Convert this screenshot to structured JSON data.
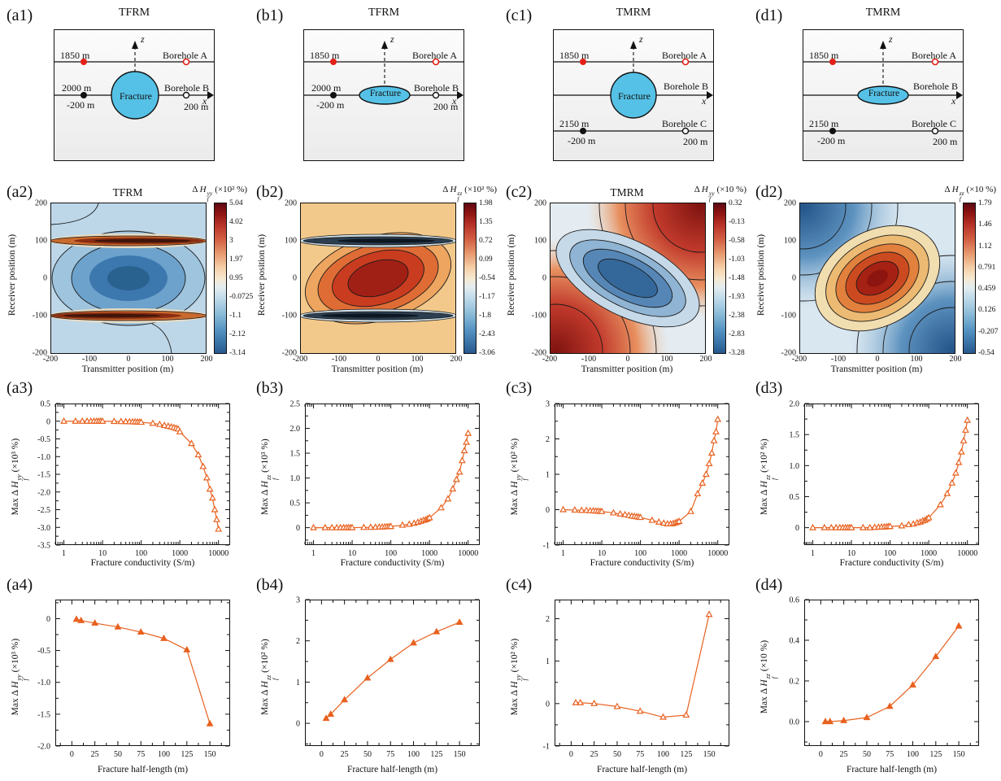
{
  "schematics": [
    {
      "panel_label": "(a1)",
      "title": "TFRM",
      "fracture_shape": "circle",
      "boreholes": "two",
      "depth_top": "1850 m",
      "borehole_top": "Borehole A",
      "depth_mid": "2000 m",
      "borehole_mid": "Borehole B",
      "left_offset": "-200 m",
      "right_offset": "200 m",
      "fracture_label": "Fracture",
      "z_axis": "z",
      "x_axis": "x"
    },
    {
      "panel_label": "(b1)",
      "title": "TFRM",
      "fracture_shape": "ellipse",
      "boreholes": "two",
      "depth_top": "1850 m",
      "borehole_top": "Borehole A",
      "depth_mid": "2000 m",
      "borehole_mid": "Borehole B",
      "left_offset": "-200 m",
      "right_offset": "200 m",
      "fracture_label": "Fracture",
      "z_axis": "z",
      "x_axis": "x"
    },
    {
      "panel_label": "(c1)",
      "title": "TMRM",
      "fracture_shape": "circle",
      "boreholes": "three",
      "depth_top": "1850 m",
      "borehole_top": "Borehole A",
      "borehole_mid": "Borehole B",
      "depth_bot": "2150 m",
      "borehole_bot": "Borehole C",
      "left_offset": "-200 m",
      "right_offset": "200 m",
      "fracture_label": "Fracture",
      "z_axis": "z",
      "x_axis": "x"
    },
    {
      "panel_label": "(d1)",
      "title": "TMRM",
      "fracture_shape": "ellipse",
      "boreholes": "three",
      "depth_top": "1850 m",
      "borehole_top": "Borehole A",
      "borehole_mid": "Borehole B",
      "depth_bot": "2150 m",
      "borehole_bot": "Borehole C",
      "left_offset": "-200 m",
      "right_offset": "200 m",
      "fracture_label": "Fracture",
      "z_axis": "z",
      "x_axis": "x"
    }
  ],
  "chart_data": [
    {
      "id": "a2",
      "type": "heatmap",
      "panel_label": "(a2)",
      "title": "TFRM",
      "xlabel": "Transmitter position (m)",
      "ylabel": "Receiver position (m)",
      "xlim": [
        -200,
        200
      ],
      "ylim": [
        -200,
        200
      ],
      "xtick_labels": [
        "-200",
        "-100",
        "0",
        "100",
        "200"
      ],
      "ytick_labels": [
        "200",
        "100",
        "0",
        "-100",
        "-200"
      ],
      "colorbar": {
        "label": {
          "prefix": "Δ ",
          "sym": "H",
          "sup": "yy",
          "sub": "f",
          "unit": "(×10² %)"
        },
        "tick_labels": [
          "5.04",
          "4.02",
          "3",
          "1.97",
          "0.95",
          "-0.0725",
          "-1.1",
          "-2.12",
          "-3.14"
        ]
      },
      "description": "negative (blue) elliptical anomaly centered at origin with strong positive (dark red) horizontal bands at receiver positions ±100 m"
    },
    {
      "id": "b2",
      "type": "heatmap",
      "panel_label": "(b2)",
      "title": "",
      "xlabel": "Transmitter position (m)",
      "ylabel": "Receiver position (m)",
      "xlim": [
        -200,
        200
      ],
      "ylim": [
        -200,
        200
      ],
      "xtick_labels": [
        "-200",
        "-100",
        "0",
        "100",
        "200"
      ],
      "ytick_labels": [
        "200",
        "100",
        "0",
        "-100",
        "-200"
      ],
      "colorbar": {
        "label": {
          "prefix": "Δ ",
          "sym": "H",
          "sup": "zz",
          "sub": "f",
          "unit": "(×10² %)"
        },
        "tick_labels": [
          "1.98",
          "1.35",
          "0.72",
          "0.09",
          "-0.54",
          "-1.17",
          "-1.8",
          "-2.43",
          "-3.06"
        ]
      },
      "description": "positive (dark red) tilted elliptical anomaly centered at origin on warm background with dark negative horizontal bands at receiver positions ±100 m"
    },
    {
      "id": "c2",
      "type": "heatmap",
      "panel_label": "(c2)",
      "title": "TMRM",
      "xlabel": "Transmitter position (m)",
      "ylabel": "Receiver position (m)",
      "xlim": [
        -200,
        200
      ],
      "ylim": [
        -200,
        200
      ],
      "xtick_labels": [
        "-200",
        "-100",
        "0",
        "100",
        "200"
      ],
      "ytick_labels": [
        "200",
        "100",
        "0",
        "-100",
        "-200"
      ],
      "colorbar": {
        "label": {
          "prefix": "Δ ",
          "sym": "H",
          "sup": "yy",
          "sub": "f",
          "unit": "(×10 %)"
        },
        "tick_labels": [
          "0.32",
          "-0.13",
          "-0.58",
          "-1.03",
          "-1.48",
          "-1.93",
          "-2.38",
          "-2.83",
          "-3.28"
        ]
      },
      "description": "negative (blue) band elongated along the main diagonal with positive (red) lobes in the bottom-left and top-right corners"
    },
    {
      "id": "d2",
      "type": "heatmap",
      "panel_label": "(d2)",
      "title": "",
      "xlabel": "Transmitter position (m)",
      "ylabel": "Receiver position (m)",
      "xlim": [
        -200,
        200
      ],
      "ylim": [
        -200,
        200
      ],
      "xtick_labels": [
        "-200",
        "-100",
        "0",
        "100",
        "200"
      ],
      "ytick_labels": [
        "200",
        "100",
        "0",
        "-100",
        "-200"
      ],
      "colorbar": {
        "label": {
          "prefix": "Δ ",
          "sym": "H",
          "sup": "zz",
          "sub": "f",
          "unit": "(×10 %)"
        },
        "tick_labels": [
          "1.79",
          "1.46",
          "1.12",
          "0.791",
          "0.459",
          "0.126",
          "-0.207",
          "-0.54"
        ]
      },
      "description": "positive (red) tilted elliptical anomaly centered at origin with negative (blue) lobes in the top-left and bottom-right corners"
    },
    {
      "id": "a3",
      "type": "line",
      "panel_label": "(a3)",
      "xscale": "log",
      "xlabel": "Fracture conductivity (S/m)",
      "ylabel": {
        "prefix": "Max Δ ",
        "sym": "H",
        "sup": "yy",
        "sub": "f",
        "unit": "(×10³ %)"
      },
      "xlim": [
        0.6,
        20000
      ],
      "ylim": [
        -3.5,
        0.5
      ],
      "xticks": [
        1,
        10,
        100,
        1000,
        10000
      ],
      "xtick_labels": [
        "1",
        "10",
        "100",
        "1000",
        "10000"
      ],
      "yticks": [
        0.5,
        0,
        -0.5,
        -1,
        -1.5,
        -2,
        -2.5,
        -3,
        -3.5
      ],
      "ytick_labels": [
        "0.5",
        "0",
        "-0.5",
        "-1.0",
        "-1.5",
        "-2.0",
        "-2.5",
        "-3.0",
        "-3.5"
      ],
      "yminor": 0.25,
      "x": [
        1,
        2,
        3,
        4,
        5,
        6,
        7,
        8,
        9,
        10,
        20,
        30,
        40,
        50,
        60,
        70,
        80,
        90,
        100,
        200,
        300,
        400,
        500,
        600,
        700,
        800,
        900,
        1000,
        2000,
        3000,
        4000,
        5000,
        6000,
        7000,
        8000,
        9000,
        10000
      ],
      "y": [
        0,
        0,
        0,
        0,
        0,
        0,
        0,
        0,
        0,
        0,
        -0.005,
        -0.01,
        -0.012,
        -0.015,
        -0.018,
        -0.02,
        -0.022,
        -0.025,
        -0.03,
        -0.06,
        -0.09,
        -0.12,
        -0.14,
        -0.16,
        -0.18,
        -0.2,
        -0.22,
        -0.3,
        -0.63,
        -0.95,
        -1.28,
        -1.6,
        -1.92,
        -2.17,
        -2.5,
        -2.78,
        -3.05
      ],
      "marker": "open",
      "color": "#e8611f"
    },
    {
      "id": "b3",
      "type": "line",
      "panel_label": "(b3)",
      "xscale": "log",
      "xlabel": "Fracture conductivity (S/m)",
      "ylabel": {
        "prefix": "Max Δ ",
        "sym": "H",
        "sup": "zz",
        "sub": "f",
        "unit": "(×10³ %)"
      },
      "xlim": [
        0.6,
        20000
      ],
      "ylim": [
        -0.35,
        2.5
      ],
      "xticks": [
        1,
        10,
        100,
        1000,
        10000
      ],
      "xtick_labels": [
        "1",
        "10",
        "100",
        "1000",
        "10000"
      ],
      "yticks": [
        2.5,
        2,
        1.5,
        1,
        0.5,
        0
      ],
      "ytick_labels": [
        "2.5",
        "2.0",
        "1.5",
        "1.0",
        "0.5",
        "0"
      ],
      "yminor": 0.25,
      "x": [
        1,
        2,
        3,
        4,
        5,
        6,
        7,
        8,
        9,
        10,
        20,
        30,
        40,
        50,
        60,
        70,
        80,
        90,
        100,
        200,
        300,
        400,
        500,
        600,
        700,
        800,
        900,
        1000,
        2000,
        3000,
        4000,
        5000,
        6000,
        7000,
        8000,
        9000,
        10000
      ],
      "y": [
        0,
        0,
        0,
        0,
        0,
        0,
        0,
        0,
        0,
        0,
        0.005,
        0.008,
        0.01,
        0.012,
        0.015,
        0.018,
        0.02,
        0.022,
        0.025,
        0.05,
        0.07,
        0.09,
        0.11,
        0.13,
        0.15,
        0.16,
        0.18,
        0.2,
        0.4,
        0.58,
        0.78,
        0.97,
        1.12,
        1.35,
        1.55,
        1.72,
        1.9
      ],
      "marker": "open",
      "color": "#e8611f"
    },
    {
      "id": "c3",
      "type": "line",
      "panel_label": "(c3)",
      "xscale": "log",
      "xlabel": "Fracture conductivity (S/m)",
      "ylabel": {
        "prefix": "Max Δ ",
        "sym": "H",
        "sup": "yy",
        "sub": "f",
        "unit": "(×10² %)"
      },
      "xlim": [
        0.6,
        20000
      ],
      "ylim": [
        -1,
        3
      ],
      "xticks": [
        1,
        10,
        100,
        1000,
        10000
      ],
      "xtick_labels": [
        "1",
        "10",
        "100",
        "1000",
        "10000"
      ],
      "yticks": [
        3,
        2,
        1,
        0,
        -1
      ],
      "ytick_labels": [
        "3",
        "2",
        "1",
        "0",
        "-1"
      ],
      "yminor": 0.5,
      "x": [
        1,
        2,
        3,
        4,
        5,
        6,
        7,
        8,
        9,
        10,
        20,
        30,
        40,
        50,
        60,
        70,
        80,
        90,
        100,
        200,
        300,
        400,
        500,
        600,
        700,
        800,
        900,
        1000,
        2000,
        3000,
        4000,
        5000,
        6000,
        7000,
        8000,
        9000,
        10000
      ],
      "y": [
        0,
        -0.01,
        -0.02,
        -0.02,
        -0.03,
        -0.03,
        -0.04,
        -0.04,
        -0.05,
        -0.05,
        -0.09,
        -0.12,
        -0.14,
        -0.16,
        -0.18,
        -0.19,
        -0.2,
        -0.21,
        -0.22,
        -0.3,
        -0.35,
        -0.38,
        -0.4,
        -0.4,
        -0.39,
        -0.37,
        -0.35,
        -0.33,
        -0.05,
        0.45,
        0.75,
        1.0,
        1.3,
        1.6,
        1.95,
        2.2,
        2.55
      ],
      "marker": "open",
      "color": "#e8611f"
    },
    {
      "id": "d3",
      "type": "line",
      "panel_label": "(d3)",
      "xscale": "log",
      "xlabel": "Fracture conductivity (S/m)",
      "ylabel": {
        "prefix": "Max Δ ",
        "sym": "H",
        "sup": "zz",
        "sub": "f",
        "unit": "(×10² %)"
      },
      "xlim": [
        0.6,
        20000
      ],
      "ylim": [
        -0.28,
        2
      ],
      "xticks": [
        1,
        10,
        100,
        1000,
        10000
      ],
      "xtick_labels": [
        "1",
        "10",
        "100",
        "1000",
        "10000"
      ],
      "yticks": [
        2,
        1.5,
        1,
        0.5,
        0
      ],
      "ytick_labels": [
        "2.0",
        "1.5",
        "1.0",
        "0.5",
        "0"
      ],
      "yminor": 0.25,
      "x": [
        1,
        2,
        3,
        4,
        5,
        6,
        7,
        8,
        9,
        10,
        20,
        30,
        40,
        50,
        60,
        70,
        80,
        90,
        100,
        200,
        300,
        400,
        500,
        600,
        700,
        800,
        900,
        1000,
        2000,
        3000,
        4000,
        5000,
        6000,
        7000,
        8000,
        9000,
        10000
      ],
      "y": [
        0,
        0,
        0,
        0,
        0,
        0,
        0,
        0,
        0,
        0,
        0,
        0,
        0.005,
        0.008,
        0.01,
        0.012,
        0.015,
        0.018,
        0.02,
        0.03,
        0.05,
        0.06,
        0.08,
        0.09,
        0.11,
        0.12,
        0.14,
        0.16,
        0.37,
        0.55,
        0.72,
        0.88,
        1.05,
        1.22,
        1.4,
        1.57,
        1.73
      ],
      "marker": "open",
      "color": "#e8611f"
    },
    {
      "id": "a4",
      "type": "line",
      "panel_label": "(a4)",
      "xscale": "linear",
      "xlabel": "Fracture half-length (m)",
      "ylabel": {
        "prefix": "Max Δ ",
        "sym": "H",
        "sup": "yy",
        "sub": "f",
        "unit": "(×10³ %)"
      },
      "xlim": [
        -18,
        172
      ],
      "ylim": [
        -2,
        0.3
      ],
      "xticks": [
        0,
        25,
        50,
        75,
        100,
        125,
        150
      ],
      "xtick_labels": [
        "0",
        "25",
        "50",
        "75",
        "100",
        "125",
        "150"
      ],
      "xminor": 12.5,
      "yticks": [
        0,
        -0.5,
        -1,
        -1.5,
        -2
      ],
      "ytick_labels": [
        "0",
        "-0.5",
        "-1.0",
        "-1.5",
        "-2.0"
      ],
      "yminor": 0.25,
      "x": [
        5,
        10,
        25,
        50,
        75,
        100,
        125,
        150
      ],
      "y": [
        -0.01,
        -0.03,
        -0.07,
        -0.13,
        -0.21,
        -0.31,
        -0.49,
        -1.65
      ],
      "marker": "filled",
      "color": "#e8611f"
    },
    {
      "id": "b4",
      "type": "line",
      "panel_label": "(b4)",
      "xscale": "linear",
      "xlabel": "Fracture half-length (m)",
      "ylabel": {
        "prefix": "Max Δ ",
        "sym": "H",
        "sup": "zz",
        "sub": "f",
        "unit": "(×10² %)"
      },
      "xlim": [
        -18,
        172
      ],
      "ylim": [
        -0.55,
        3
      ],
      "xticks": [
        0,
        25,
        50,
        75,
        100,
        125,
        150
      ],
      "xtick_labels": [
        "0",
        "25",
        "50",
        "75",
        "100",
        "125",
        "150"
      ],
      "xminor": 12.5,
      "yticks": [
        3,
        2,
        1,
        0
      ],
      "ytick_labels": [
        "3",
        "2",
        "1",
        "0"
      ],
      "yminor": 0.5,
      "x": [
        5,
        10,
        25,
        50,
        75,
        100,
        125,
        150
      ],
      "y": [
        0.12,
        0.22,
        0.57,
        1.1,
        1.55,
        1.95,
        2.22,
        2.45
      ],
      "marker": "filled",
      "color": "#e8611f"
    },
    {
      "id": "c4",
      "type": "line",
      "panel_label": "(c4)",
      "xscale": "linear",
      "xlabel": "Fracture half-length (m)",
      "ylabel": {
        "prefix": "Max Δ ",
        "sym": "H",
        "sup": "yy",
        "sub": "f",
        "unit": "(×10² %)"
      },
      "xlim": [
        -18,
        172
      ],
      "ylim": [
        -1,
        2.45
      ],
      "xticks": [
        0,
        25,
        50,
        75,
        100,
        125,
        150
      ],
      "xtick_labels": [
        "0",
        "25",
        "50",
        "75",
        "100",
        "125",
        "150"
      ],
      "xminor": 12.5,
      "yticks": [
        2,
        1,
        0,
        -1
      ],
      "ytick_labels": [
        "2",
        "1",
        "0",
        "-1"
      ],
      "yminor": 0.5,
      "x": [
        5,
        10,
        25,
        50,
        75,
        100,
        125,
        150
      ],
      "y": [
        0.02,
        0.02,
        0,
        -0.07,
        -0.18,
        -0.32,
        -0.27,
        2.1
      ],
      "marker": "open",
      "color": "#e8611f"
    },
    {
      "id": "d4",
      "type": "line",
      "panel_label": "(d4)",
      "xscale": "linear",
      "xlabel": "Fracture half-length (m)",
      "ylabel": {
        "prefix": "Max Δ ",
        "sym": "H",
        "sup": "zz",
        "sub": "f",
        "unit": "(×10 %)"
      },
      "xlim": [
        -18,
        172
      ],
      "ylim": [
        -0.12,
        0.6
      ],
      "xticks": [
        0,
        25,
        50,
        75,
        100,
        125,
        150
      ],
      "xtick_labels": [
        "0",
        "25",
        "50",
        "75",
        "100",
        "125",
        "150"
      ],
      "xminor": 12.5,
      "yticks": [
        0.6,
        0.4,
        0.2,
        0
      ],
      "ytick_labels": [
        "0.6",
        "0.4",
        "0.2",
        "0.0"
      ],
      "yminor": 0.1,
      "x": [
        5,
        10,
        25,
        50,
        75,
        100,
        125,
        150
      ],
      "y": [
        0,
        0,
        0.005,
        0.02,
        0.075,
        0.18,
        0.32,
        0.47
      ],
      "marker": "filled",
      "color": "#e8611f"
    }
  ]
}
